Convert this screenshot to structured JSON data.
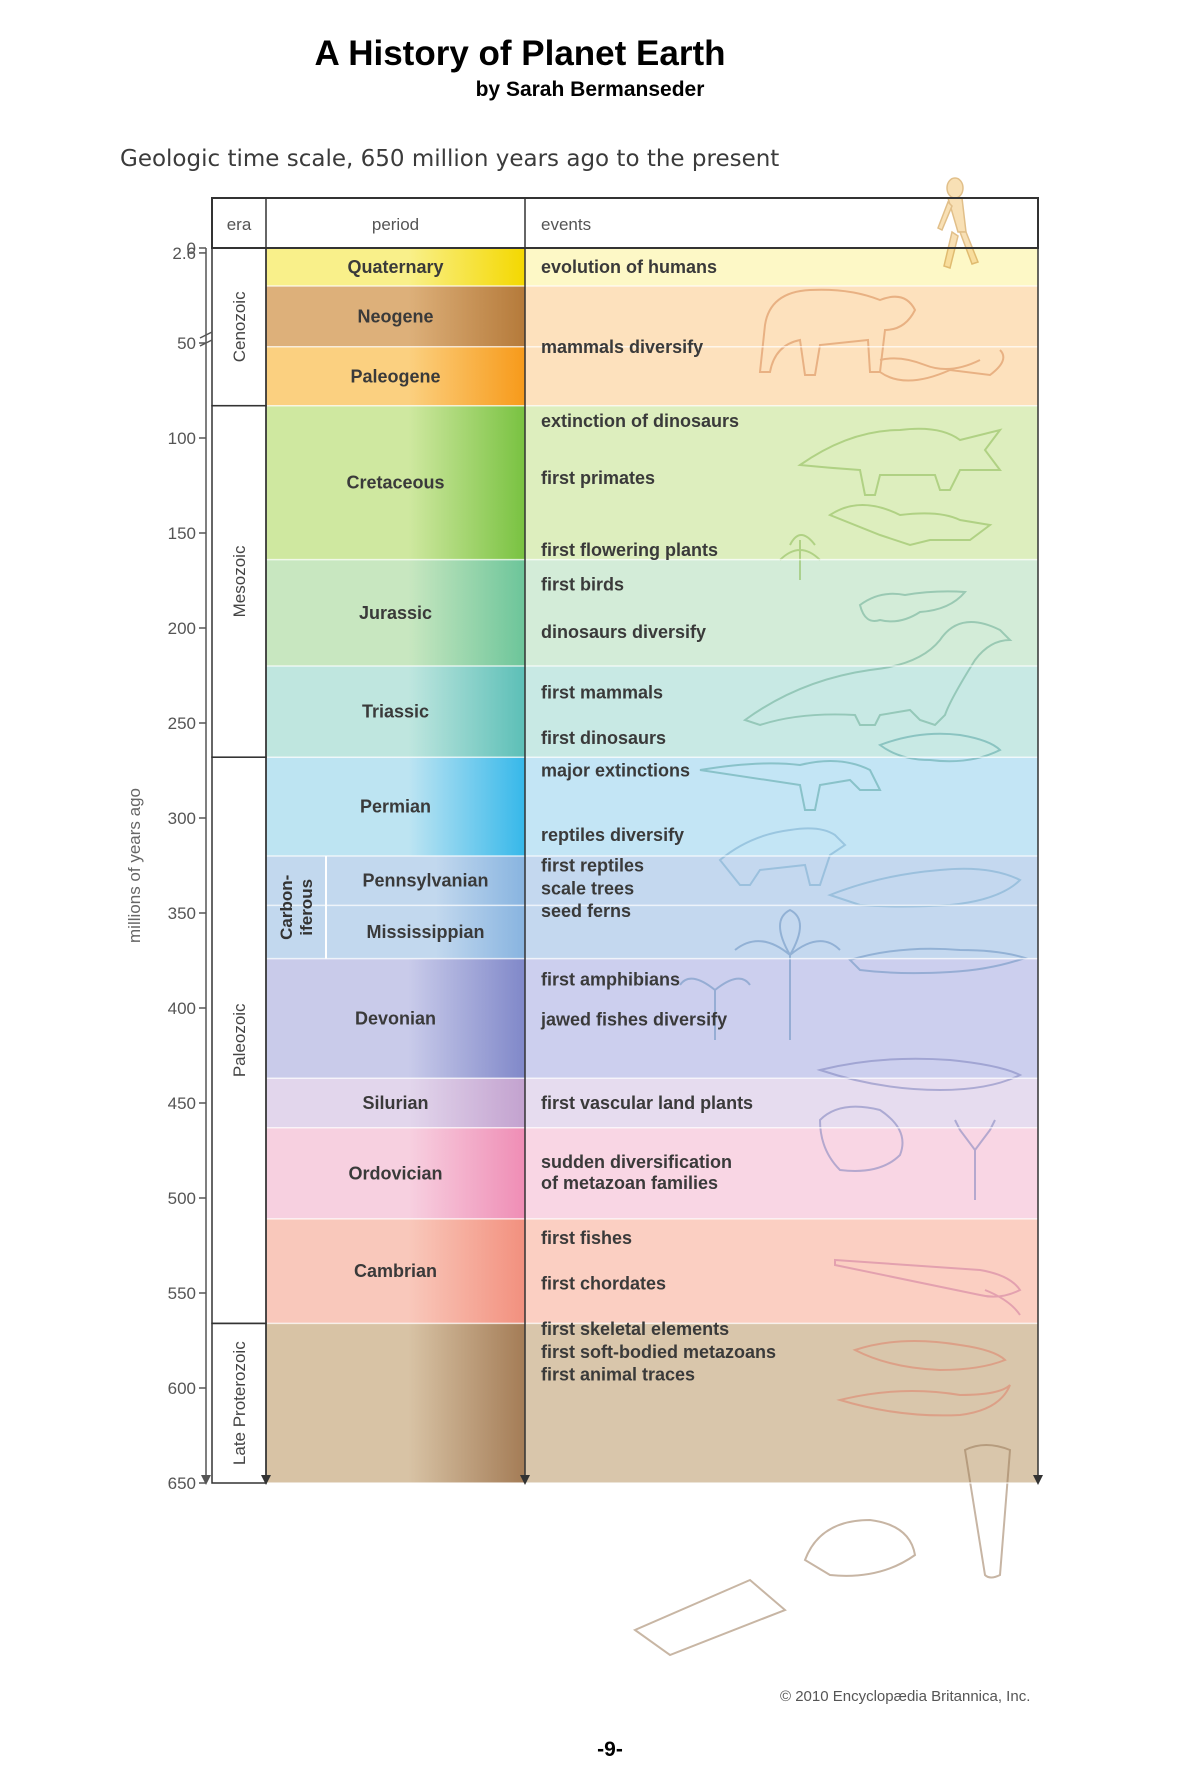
{
  "header": {
    "title": "A History of Planet Earth",
    "byline": "by Sarah Bermanseder"
  },
  "subtitle": "Geologic time scale, 650 million years ago to the present",
  "axis": {
    "label": "millions of years ago",
    "ticks": [
      {
        "value": 0,
        "label": "0"
      },
      {
        "value": 2.6,
        "label": "2.6"
      },
      {
        "value": 50,
        "label": "50"
      },
      {
        "value": 100,
        "label": "100"
      },
      {
        "value": 150,
        "label": "150"
      },
      {
        "value": 200,
        "label": "200"
      },
      {
        "value": 250,
        "label": "250"
      },
      {
        "value": 300,
        "label": "300"
      },
      {
        "value": 350,
        "label": "350"
      },
      {
        "value": 400,
        "label": "400"
      },
      {
        "value": 450,
        "label": "450"
      },
      {
        "value": 500,
        "label": "500"
      },
      {
        "value": 550,
        "label": "550"
      },
      {
        "value": 600,
        "label": "600"
      },
      {
        "value": 650,
        "label": "650"
      }
    ]
  },
  "columns": {
    "era": "era",
    "period": "period",
    "events": "events"
  },
  "eras": [
    {
      "name": "Cenozoic",
      "start": 0,
      "end": 83
    },
    {
      "name": "Mesozoic",
      "start": 83,
      "end": 268
    },
    {
      "name": "Paleozoic",
      "start": 268,
      "end": 566
    },
    {
      "name": "Late Proterozoic",
      "start": 566,
      "end": 650
    }
  ],
  "subgroup": {
    "name_line1": "Carbon-",
    "name_line2": "iferous",
    "start": 320,
    "end": 374
  },
  "periods": [
    {
      "name": "Quaternary",
      "start": 0,
      "end": 20,
      "color": "#f9f08a",
      "accent": "#f4d800"
    },
    {
      "name": "Neogene",
      "start": 20,
      "end": 52,
      "color": "#ddb07a",
      "accent": "#b57a3a"
    },
    {
      "name": "Paleogene",
      "start": 52,
      "end": 83,
      "color": "#fbd080",
      "accent": "#f79a1a"
    },
    {
      "name": "Cretaceous",
      "start": 83,
      "end": 164,
      "color": "#cfe8a0",
      "accent": "#79c241"
    },
    {
      "name": "Jurassic",
      "start": 164,
      "end": 220,
      "color": "#c8e7c0",
      "accent": "#6cc59a"
    },
    {
      "name": "Triassic",
      "start": 220,
      "end": 268,
      "color": "#bfe6df",
      "accent": "#5cbfb7"
    },
    {
      "name": "Permian",
      "start": 268,
      "end": 320,
      "color": "#bde4f2",
      "accent": "#36b8ea"
    },
    {
      "name": "Pennsylvanian",
      "start": 320,
      "end": 346,
      "color": "#c2d8ee",
      "accent": "#88b4e0",
      "indent": true
    },
    {
      "name": "Mississippian",
      "start": 346,
      "end": 374,
      "color": "#c2d8ee",
      "accent": "#88b4e0",
      "indent": true
    },
    {
      "name": "Devonian",
      "start": 374,
      "end": 437,
      "color": "#c9cbea",
      "accent": "#8088c9"
    },
    {
      "name": "Silurian",
      "start": 437,
      "end": 463,
      "color": "#e2d6ec",
      "accent": "#c3a2cf"
    },
    {
      "name": "Ordovician",
      "start": 463,
      "end": 511,
      "color": "#f7d0e0",
      "accent": "#ef8db5"
    },
    {
      "name": "Cambrian",
      "start": 511,
      "end": 566,
      "color": "#f9c8bb",
      "accent": "#f2907e"
    },
    {
      "name": "",
      "start": 566,
      "end": 650,
      "color": "#d8c3a5",
      "accent": "#a47c56"
    }
  ],
  "event_bands": [
    {
      "start": 0,
      "end": 20,
      "color": "#fdf8c6"
    },
    {
      "start": 20,
      "end": 83,
      "color": "#fde1bd"
    },
    {
      "start": 83,
      "end": 164,
      "color": "#ddeebe"
    },
    {
      "start": 164,
      "end": 220,
      "color": "#d3ecd8"
    },
    {
      "start": 220,
      "end": 268,
      "color": "#c8e9e4"
    },
    {
      "start": 268,
      "end": 320,
      "color": "#c3e5f5"
    },
    {
      "start": 320,
      "end": 374,
      "color": "#c4d8ef"
    },
    {
      "start": 374,
      "end": 437,
      "color": "#cccfee"
    },
    {
      "start": 437,
      "end": 463,
      "color": "#e6dcef"
    },
    {
      "start": 463,
      "end": 511,
      "color": "#f9d6e4"
    },
    {
      "start": 511,
      "end": 566,
      "color": "#fbcfc2"
    },
    {
      "start": 566,
      "end": 650,
      "color": "#d9c6ab"
    }
  ],
  "events": [
    {
      "text": "evolution of humans",
      "at": 10
    },
    {
      "text": "mammals diversify",
      "at": 52
    },
    {
      "text": "extinction of dinosaurs",
      "at": 91
    },
    {
      "text": "first primates",
      "at": 121
    },
    {
      "text": "first flowering plants",
      "at": 159
    },
    {
      "text": "first birds",
      "at": 177
    },
    {
      "text": "dinosaurs diversify",
      "at": 202
    },
    {
      "text": "first mammals",
      "at": 234
    },
    {
      "text": "first dinosaurs",
      "at": 258
    },
    {
      "text": "major extinctions",
      "at": 275
    },
    {
      "text": "reptiles diversify",
      "at": 309
    },
    {
      "text": "first reptiles",
      "at": 325
    },
    {
      "text": "scale trees",
      "at": 337
    },
    {
      "text": "seed ferns",
      "at": 349
    },
    {
      "text": "first amphibians",
      "at": 385
    },
    {
      "text": "jawed fishes diversify",
      "at": 406
    },
    {
      "text": "first vascular land plants",
      "at": 450
    },
    {
      "text": "sudden diversification",
      "at": 481
    },
    {
      "text": "of metazoan families",
      "at": 492
    },
    {
      "text": "first fishes",
      "at": 521
    },
    {
      "text": "first chordates",
      "at": 545
    },
    {
      "text": "first skeletal elements",
      "at": 569
    },
    {
      "text": "first soft-bodied metazoans",
      "at": 581
    },
    {
      "text": "first animal traces",
      "at": 593
    }
  ],
  "copyright": "© 2010 Encyclopædia Britannica, Inc.",
  "page_number": "-9-"
}
